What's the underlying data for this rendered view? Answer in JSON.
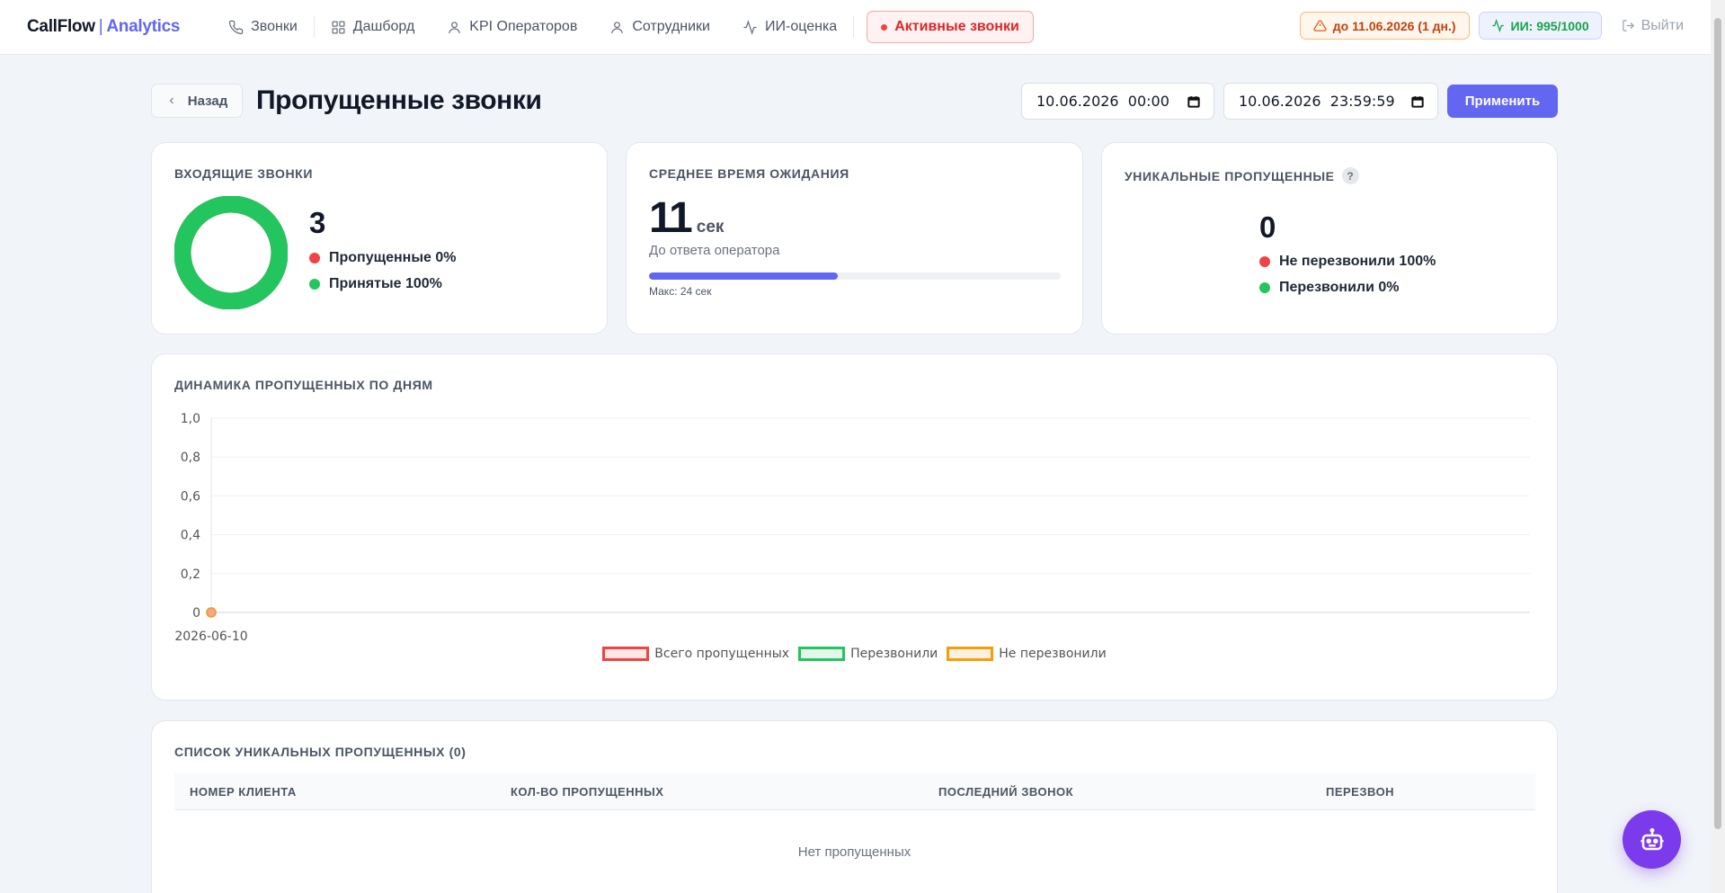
{
  "header": {
    "logo_brand": "CallFlow",
    "logo_sep": "|",
    "logo_sub": "Analytics",
    "nav": [
      {
        "label": "Звонки",
        "icon": "phone-icon"
      },
      {
        "label": "Дашборд",
        "icon": "grid-icon"
      },
      {
        "label": "KPI Операторов",
        "icon": "user-icon"
      },
      {
        "label": "Сотрудники",
        "icon": "user-icon"
      },
      {
        "label": "ИИ-оценка",
        "icon": "activity-icon"
      }
    ],
    "active_calls": "Активные звонки",
    "license_badge": "до 11.06.2026 (1 дн.)",
    "ai_badge": "ИИ: 995/1000",
    "logout": "Выйти"
  },
  "page": {
    "back": "Назад",
    "title": "Пропущенные звонки",
    "date_from": "10.06.2026  00:00",
    "date_to": "10.06.2026  23:59:59",
    "apply": "Применить"
  },
  "incoming": {
    "title": "Входящие звонки",
    "total": "3",
    "missed": "Пропущенные 0%",
    "accepted": "Принятые 100%",
    "missed_fraction": 0,
    "accepted_fraction": 1,
    "accepted_color": "#22c55e",
    "missed_color": "#ef4444"
  },
  "wait": {
    "title": "Среднее время ожидания",
    "value": "11",
    "unit": "сек",
    "subtitle": "До ответа оператора",
    "max": "Макс: 24 сек",
    "avg_seconds": 11,
    "max_seconds": 24,
    "bar_color": "#6366f1"
  },
  "unique": {
    "title": "Уникальные пропущенные",
    "help": "?",
    "value": "0",
    "not_called": "Не перезвонили 100%",
    "called": "Перезвонили 0%"
  },
  "dynamics": {
    "title": "Динамика пропущенных по дням"
  },
  "chart_data": {
    "type": "line",
    "x": [
      "2026-06-10"
    ],
    "series": [
      {
        "name": "Всего пропущенных",
        "values": [
          0
        ],
        "color": "#ef4444"
      },
      {
        "name": "Перезвонили",
        "values": [
          0
        ],
        "color": "#22c55e"
      },
      {
        "name": "Не перезвонили",
        "values": [
          0
        ],
        "color": "#f59e0b"
      }
    ],
    "ylim": [
      0,
      1
    ],
    "yticks": [
      "0",
      "0,2",
      "0,4",
      "0,6",
      "0,8",
      "1,0"
    ],
    "grid": true,
    "legend": "bottom"
  },
  "table": {
    "title": "Список уникальных пропущенных (0)",
    "columns": [
      "Номер клиента",
      "Кол-во пропущенных",
      "Последний звонок",
      "Перезвон"
    ],
    "empty": "Нет пропущенных"
  }
}
